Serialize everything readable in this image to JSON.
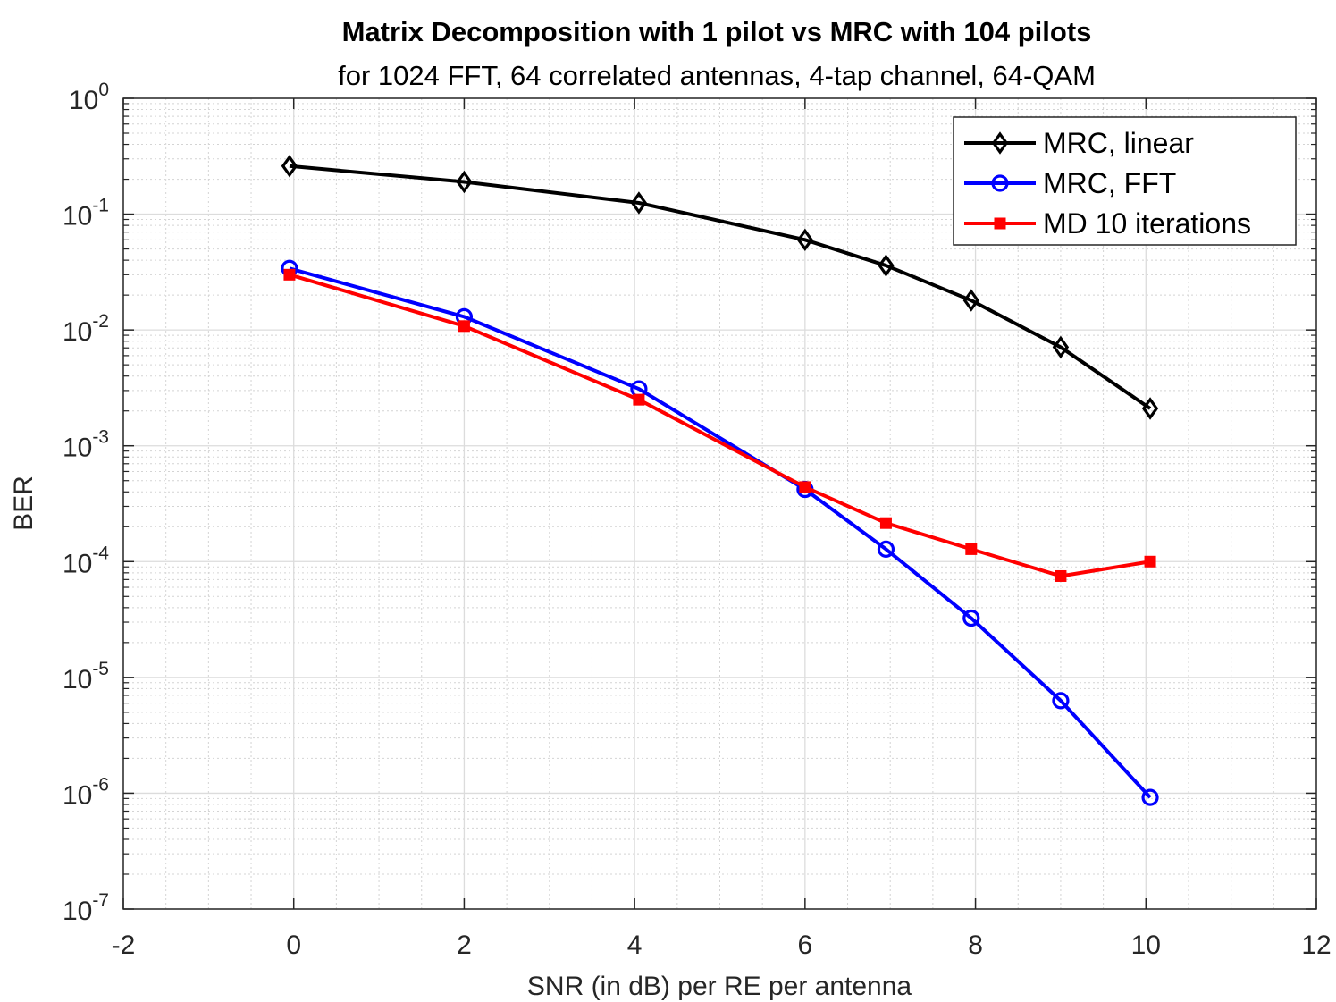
{
  "chart_data": {
    "type": "line",
    "title": "Matrix Decomposition with 1 pilot vs MRC with 104 pilots",
    "subtitle": "for 1024 FFT, 64 correlated antennas, 4-tap channel, 64-QAM",
    "xlabel": "SNR (in dB) per RE per antenna",
    "ylabel": "BER",
    "xlim": [
      -2,
      12
    ],
    "ylim": [
      1e-07,
      1
    ],
    "yscale": "log",
    "grid": true,
    "minor_grid": true,
    "legend_position": "top-right",
    "x_ticks": [
      -2,
      0,
      2,
      4,
      6,
      8,
      10,
      12
    ],
    "y_ticks": [
      {
        "base": "10",
        "exp": "0",
        "value": 1
      },
      {
        "base": "10",
        "exp": "-1",
        "value": 0.1
      },
      {
        "base": "10",
        "exp": "-2",
        "value": 0.01
      },
      {
        "base": "10",
        "exp": "-3",
        "value": 0.001
      },
      {
        "base": "10",
        "exp": "-4",
        "value": 0.0001
      },
      {
        "base": "10",
        "exp": "-5",
        "value": 1e-05
      },
      {
        "base": "10",
        "exp": "-6",
        "value": 1e-06
      },
      {
        "base": "10",
        "exp": "-7",
        "value": 1e-07
      }
    ],
    "series": [
      {
        "name": "MRC, linear",
        "color": "#000000",
        "marker": "diamond",
        "x": [
          -0.05,
          2,
          4.05,
          6,
          6.95,
          7.95,
          9,
          10.05
        ],
        "y": [
          0.26,
          0.19,
          0.125,
          0.06,
          0.036,
          0.018,
          0.0071,
          0.0021
        ]
      },
      {
        "name": "MRC, FFT",
        "color": "#0000ff",
        "marker": "circle",
        "x": [
          -0.05,
          2,
          4.05,
          6,
          6.95,
          7.95,
          9,
          10.05
        ],
        "y": [
          0.034,
          0.013,
          0.0031,
          0.00042,
          0.000128,
          3.25e-05,
          6.3e-06,
          9.2e-07
        ]
      },
      {
        "name": "MD 10 iterations",
        "color": "#ff0000",
        "marker": "square",
        "x": [
          -0.05,
          2,
          4.05,
          6,
          6.95,
          7.95,
          9,
          10.05
        ],
        "y": [
          0.03,
          0.0108,
          0.0025,
          0.00044,
          0.000215,
          0.000128,
          7.5e-05,
          0.0001
        ]
      }
    ]
  }
}
